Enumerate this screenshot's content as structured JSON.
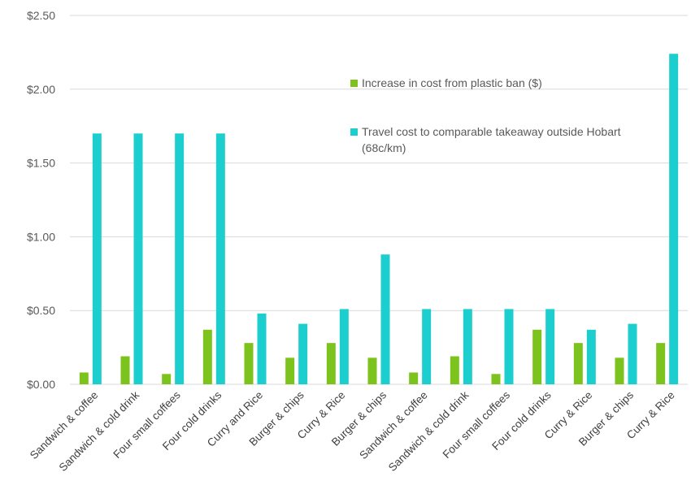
{
  "chart_data": {
    "type": "bar",
    "categories": [
      "Sandwich & coffee",
      "Sandwich & cold drink",
      "Four small coffees",
      "Four cold drinks",
      "Curry and Rice",
      "Burger & chips",
      "Curry & Rice",
      "Burger & chips",
      "Sandwich & coffee",
      "Sandwich & cold drink",
      "Four small coffees",
      "Four cold drinks",
      "Curry & Rice",
      "Burger & chips",
      "Curry & Rice"
    ],
    "series": [
      {
        "name": "Increase in cost from plastic ban ($)",
        "color": "#7dc31d",
        "values": [
          0.08,
          0.19,
          0.07,
          0.37,
          0.28,
          0.18,
          0.28,
          0.18,
          0.08,
          0.19,
          0.07,
          0.37,
          0.28,
          0.18,
          0.28
        ]
      },
      {
        "name": "Travel cost to comparable takeaway outside Hobart (68c/km)",
        "color": "#1ccfce",
        "values": [
          1.7,
          1.7,
          1.7,
          1.7,
          0.48,
          0.41,
          0.51,
          0.88,
          0.51,
          0.51,
          0.51,
          0.51,
          0.37,
          0.41,
          2.24
        ]
      }
    ],
    "y_ticks": [
      "$0.00",
      "$0.50",
      "$1.00",
      "$1.50",
      "$2.00",
      "$2.50"
    ],
    "ylim": [
      0,
      2.5
    ],
    "grid": true,
    "legend_position": "top-right inside plot"
  }
}
